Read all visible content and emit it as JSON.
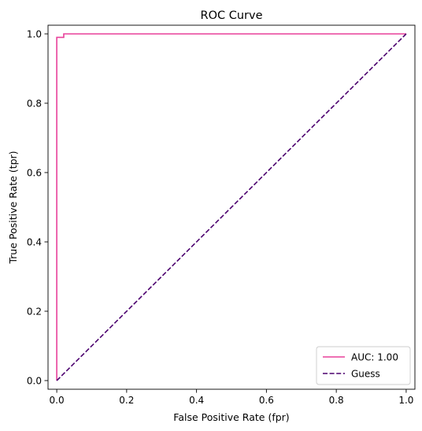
{
  "chart_data": {
    "type": "line",
    "title": "ROC Curve",
    "xlabel": "False Positive Rate (fpr)",
    "ylabel": "True Positive Rate (tpr)",
    "xlim": [
      -0.025,
      1.025
    ],
    "ylim": [
      -0.025,
      1.025
    ],
    "xticks": [
      0.0,
      0.2,
      0.4,
      0.6,
      0.8,
      1.0
    ],
    "yticks": [
      0.0,
      0.2,
      0.4,
      0.6,
      0.8,
      1.0
    ],
    "xtick_labels": [
      "0.0",
      "0.2",
      "0.4",
      "0.6",
      "0.8",
      "1.0"
    ],
    "ytick_labels": [
      "0.0",
      "0.2",
      "0.4",
      "0.6",
      "0.8",
      "1.0"
    ],
    "grid": false,
    "legend_position": "lower-right",
    "series": [
      {
        "name": "AUC: 1.00",
        "color": "#e8409a",
        "style": "solid",
        "x": [
          0.0,
          0.0,
          0.0,
          0.02,
          0.02,
          1.0
        ],
        "y": [
          0.0,
          0.99,
          0.99,
          0.99,
          1.0,
          1.0
        ]
      },
      {
        "name": "Guess",
        "color": "#4b006e",
        "style": "dashed",
        "x": [
          0.0,
          1.0
        ],
        "y": [
          0.0,
          1.0
        ]
      }
    ]
  }
}
